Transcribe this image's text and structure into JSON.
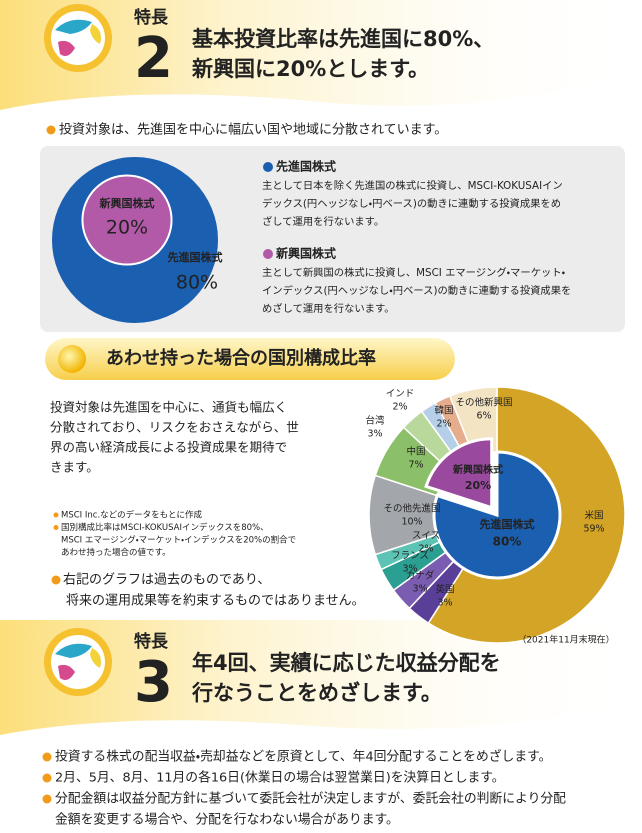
{
  "feature2": {
    "label": "特長",
    "number": "2",
    "title_lines": [
      "基本投資比率は先進国に80%、",
      "新興国に20%とします。"
    ]
  },
  "intro": "投資対象は、先進国を中心に幅広い国や地域に分散されています。",
  "chart_data": [
    {
      "type": "nested-circle",
      "categories": [
        "先進国株式",
        "新興国株式"
      ],
      "values": [
        80,
        20
      ],
      "value_labels": [
        "80%",
        "20%"
      ],
      "colors": [
        "#1b5fb0",
        "#b25aa8"
      ]
    },
    {
      "type": "donut",
      "title": "あわせ持った場合の国別構成比率",
      "inner": {
        "categories": [
          "先進国株式",
          "新興国株式"
        ],
        "values": [
          80,
          20
        ],
        "value_labels": [
          "80%",
          "20%"
        ],
        "colors": [
          "#1b5fb0",
          "#9a4a9e"
        ]
      },
      "outer": {
        "categories": [
          "米国",
          "英国",
          "カナダ",
          "フランス",
          "スイス",
          "その他先進国",
          "中国",
          "台湾",
          "インド",
          "韓国",
          "その他新興国"
        ],
        "values": [
          59,
          3,
          3,
          3,
          2,
          10,
          7,
          3,
          2,
          2,
          6
        ],
        "value_labels": [
          "59%",
          "3%",
          "3%",
          "3%",
          "2%",
          "10%",
          "7%",
          "3%",
          "2%",
          "2%",
          "6%"
        ],
        "colors": [
          "#d3a425",
          "#5a3f98",
          "#7a5cb0",
          "#2c9f93",
          "#5cc3b5",
          "#a3a7ac",
          "#8cbf6a",
          "#b9d99c",
          "#b6cfe9",
          "#e6ad8c",
          "#f3e4c4"
        ]
      },
      "note": "（2021年11月末現在）"
    }
  ],
  "descriptions": [
    {
      "heading": "先進国株式",
      "lines": [
        "主として日本を除く先進国の株式に投資し、MSCI-KOKUSAIイン",
        "デックス(円ヘッジなし・円ベース)の動きに連動する投資成果をめ",
        "ざして運用を行ないます。"
      ]
    },
    {
      "heading": "新興国株式",
      "lines": [
        "主として新興国の株式に投資し、MSCI エマージング・マーケット・",
        "インデックス(円ヘッジなし・円ベース)の動きに連動する投資成果を",
        "めざして運用を行ないます。"
      ]
    }
  ],
  "body": {
    "lines": [
      "投資対象は先進国を中心に、通貨も幅広く",
      "分散されており、リスクをおさえながら、世",
      "界の高い経済成長による投資成果を期待で",
      "きます。"
    ],
    "notes": [
      [
        "MSCI Inc.などのデータをもとに作成"
      ],
      [
        "国別構成比率はMSCI-KOKUSAIインデックスを80%、",
        "MSCI エマージング・マーケット・インデックスを20%の割合で",
        "あわせ持った場合の値です。"
      ]
    ],
    "caution": [
      "右記のグラフは過去のものであり、",
      "将来の運用成果等を約束するものではありません。"
    ]
  },
  "feature3": {
    "label": "特長",
    "number": "3",
    "title_lines": [
      "年4回、実績に応じた収益分配を",
      "行なうことをめざします。"
    ]
  },
  "points": [
    [
      "投資する株式の配当収益・売却益などを原資として、年4回分配することをめざします。"
    ],
    [
      "2月、5月、8月、11月の各16日(休業日の場合は翌営業日)を決算日とします。"
    ],
    [
      "分配金額は収益分配方針に基づいて委託会社が決定しますが、委託会社の判断により分配",
      "金額を変更する場合や、分配を行なわない場合があります。"
    ]
  ]
}
